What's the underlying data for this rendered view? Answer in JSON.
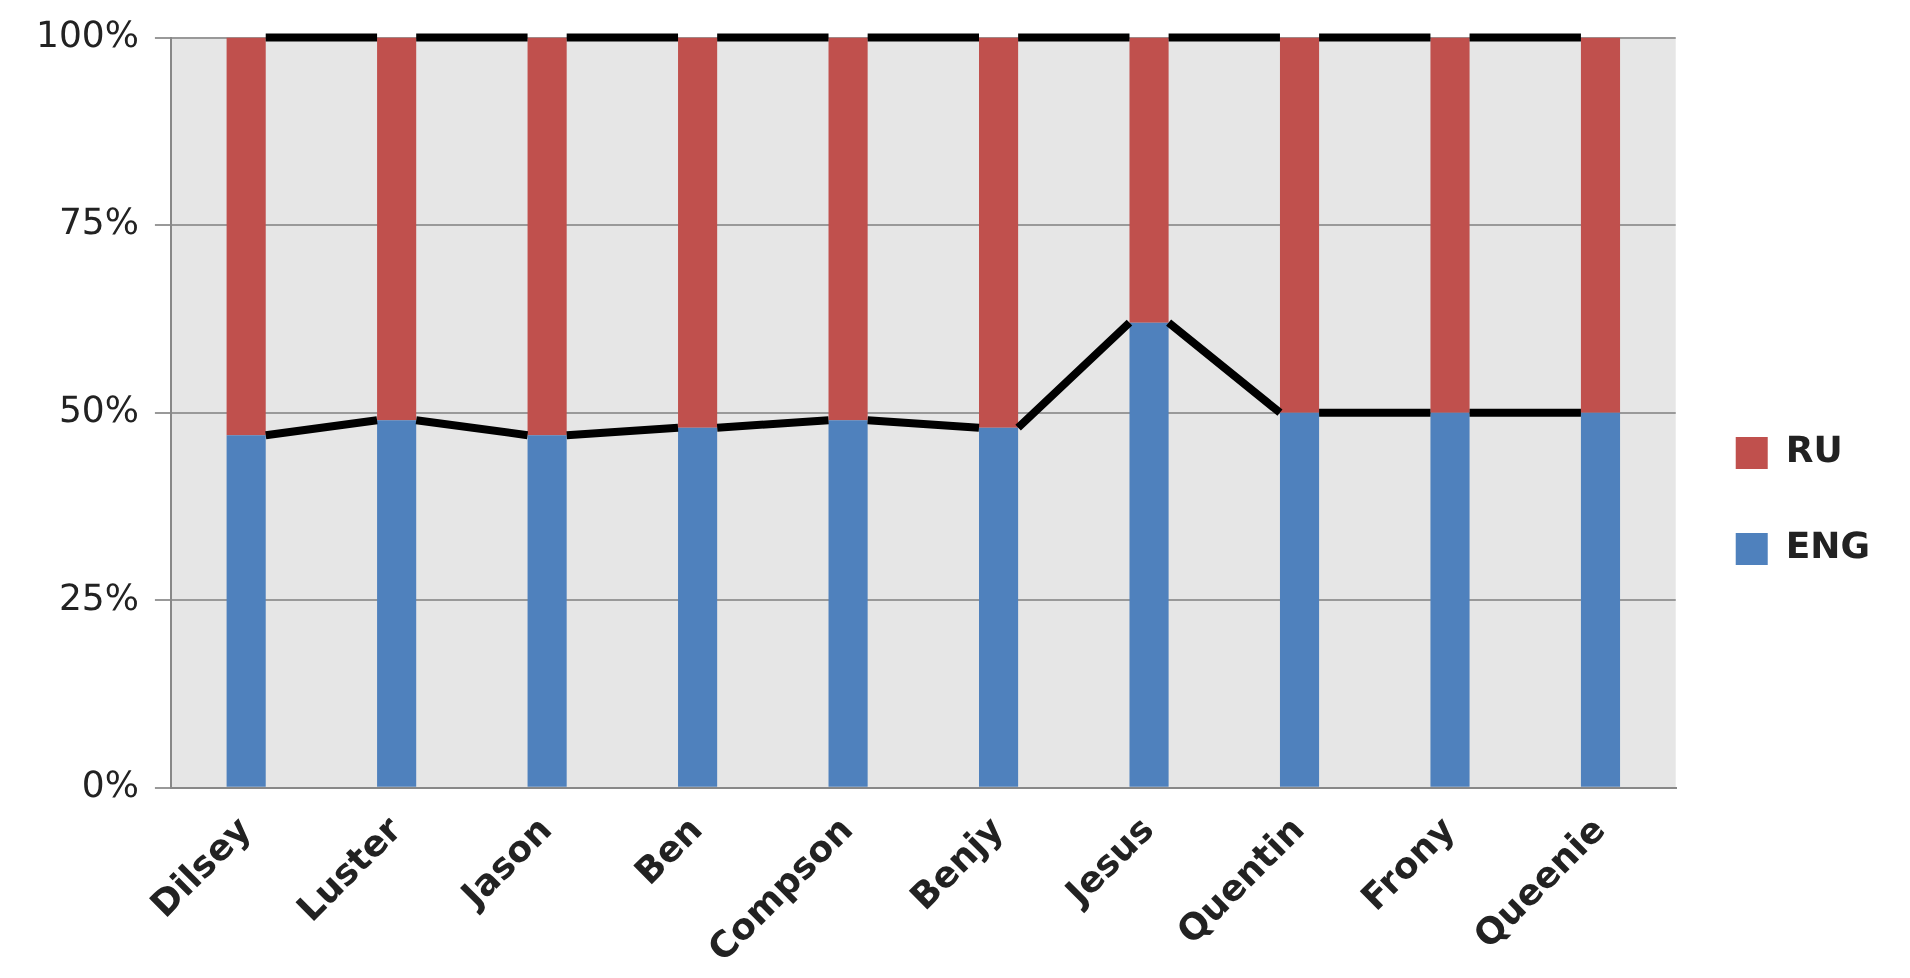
{
  "chart_data": {
    "type": "bar",
    "stacked": true,
    "categories": [
      "Dilsey",
      "Luster",
      "Jason",
      "Ben",
      "Compson",
      "Benjy",
      "Jesus",
      "Quentin",
      "Frony",
      "Queenie"
    ],
    "series": [
      {
        "name": "ENG",
        "color": "#4f81bd",
        "values": [
          47,
          49,
          47,
          48,
          49,
          48,
          62,
          50,
          50,
          50
        ]
      },
      {
        "name": "RU",
        "color": "#c0504d",
        "values": [
          53,
          51,
          53,
          52,
          51,
          52,
          38,
          50,
          50,
          50
        ]
      }
    ],
    "ylim": [
      0,
      100
    ],
    "yticks": [
      {
        "value": 0,
        "label": "0%"
      },
      {
        "value": 25,
        "label": "25%"
      },
      {
        "value": 50,
        "label": "50%"
      },
      {
        "value": 75,
        "label": "75%"
      },
      {
        "value": 100,
        "label": "100%"
      }
    ],
    "grid": "y",
    "legend": "right"
  }
}
